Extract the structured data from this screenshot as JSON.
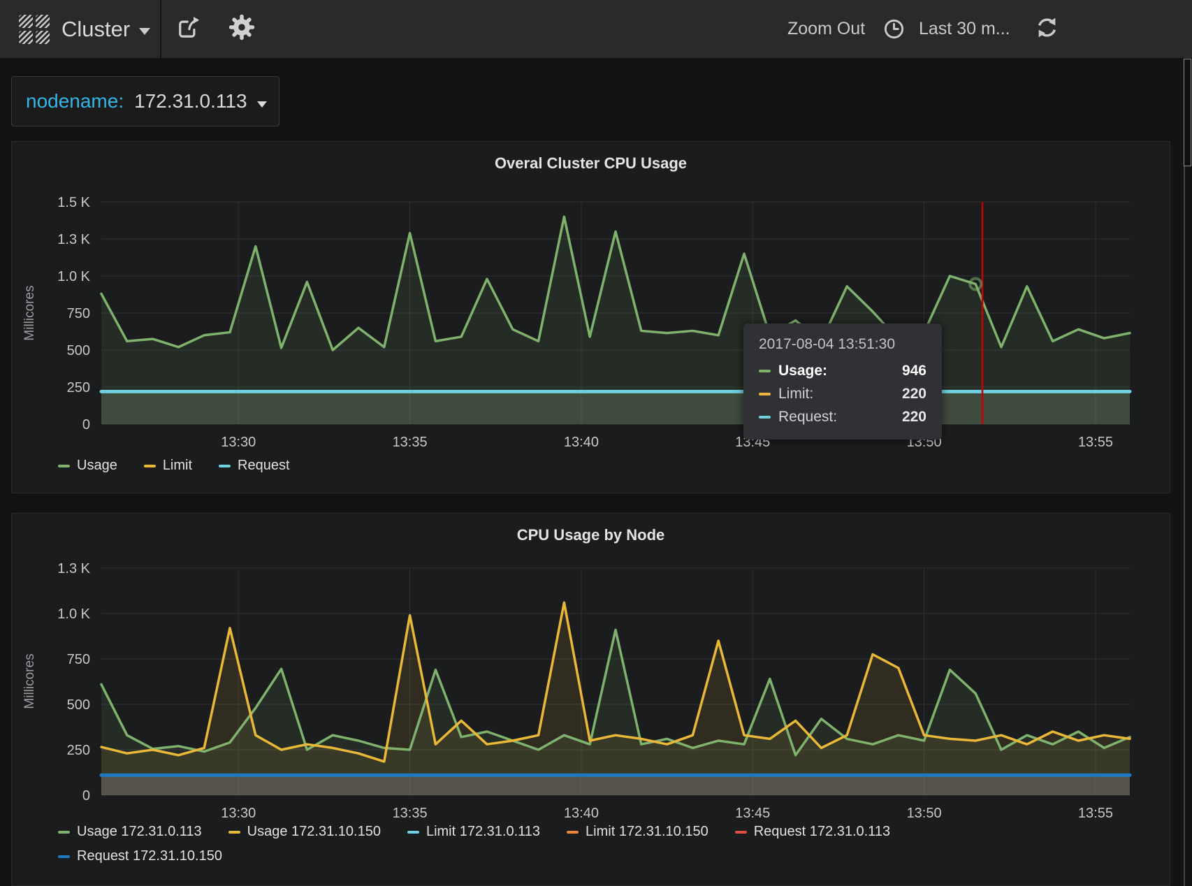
{
  "navbar": {
    "dashboard_title": "Cluster",
    "zoom_out_label": "Zoom Out",
    "time_range_label": "Last 30 m...",
    "icons": {
      "logo": "grafana-logo",
      "share": "share-icon",
      "settings": "gear-icon",
      "clock": "clock-icon",
      "refresh": "refresh-icon",
      "caret": "chevron-down-icon"
    }
  },
  "variable": {
    "label": "nodename:",
    "value": "172.31.0.113"
  },
  "tooltip": {
    "date": "2017-08-04 13:51:30",
    "rows": [
      {
        "label": "Usage:",
        "value": "946",
        "color": "#7eb26d",
        "bold": true
      },
      {
        "label": "Limit:",
        "value": "220",
        "color": "#eab839",
        "bold": false
      },
      {
        "label": "Request:",
        "value": "220",
        "color": "#6ed0e0",
        "bold": false
      }
    ]
  },
  "colors": {
    "accent_cyan": "#33b5e5",
    "green": "#7eb26d",
    "yellow": "#eab839",
    "cyan": "#6ed0e0",
    "orange": "#ef843c",
    "red": "#e24d42",
    "blue": "#1f78c1",
    "crosshair_red": "#cc0000"
  },
  "chart_data": [
    {
      "type": "line",
      "title": "Overal Cluster CPU Usage",
      "ylabel": "Millicores",
      "grid": true,
      "legend_position": "bottom-left",
      "time_start": "13:26",
      "time_end": "13:56",
      "xlim_minutes": [
        0,
        30
      ],
      "step_minutes": 0.75,
      "ylim": [
        0,
        1500
      ],
      "yticks": [
        {
          "v": 0,
          "label": "0"
        },
        {
          "v": 250,
          "label": "250"
        },
        {
          "v": 500,
          "label": "500"
        },
        {
          "v": 750,
          "label": "750"
        },
        {
          "v": 1000,
          "label": "1.0 K"
        },
        {
          "v": 1250,
          "label": "1.3 K"
        },
        {
          "v": 1500,
          "label": "1.5 K"
        }
      ],
      "xticks": [
        {
          "t": 4,
          "label": "13:30"
        },
        {
          "t": 9,
          "label": "13:35"
        },
        {
          "t": 14,
          "label": "13:40"
        },
        {
          "t": 19,
          "label": "13:45"
        },
        {
          "t": 24,
          "label": "13:50"
        },
        {
          "t": 29,
          "label": "13:55"
        }
      ],
      "series": [
        {
          "name": "Usage",
          "color": "#7eb26d",
          "width": 3.5,
          "fill": 0.1,
          "values": [
            880,
            560,
            575,
            520,
            600,
            620,
            1200,
            515,
            960,
            500,
            650,
            520,
            1290,
            560,
            590,
            980,
            640,
            560,
            1400,
            590,
            1300,
            630,
            615,
            630,
            600,
            1150,
            600,
            700,
            560,
            930,
            760,
            570,
            620,
            1000,
            946,
            520,
            930,
            560,
            640,
            580,
            615
          ]
        },
        {
          "name": "Limit",
          "color": "#eab839",
          "width": 4,
          "fill": 0.1,
          "flat": 220
        },
        {
          "name": "Request",
          "color": "#6ed0e0",
          "width": 5,
          "fill": 0.12,
          "flat": 220
        }
      ],
      "crosshair": {
        "t": 25.7,
        "color": "#cc0000"
      },
      "hover_point": {
        "series": "Usage",
        "t": 25.5,
        "value": 946
      },
      "legend_rows": [
        [
          {
            "label": "Usage",
            "color": "#7eb26d"
          },
          {
            "label": "Limit",
            "color": "#eab839"
          },
          {
            "label": "Request",
            "color": "#6ed0e0"
          }
        ]
      ]
    },
    {
      "type": "line",
      "title": "CPU Usage by Node",
      "ylabel": "Millicores",
      "grid": true,
      "legend_position": "bottom-left",
      "time_start": "13:26",
      "time_end": "13:56",
      "xlim_minutes": [
        0,
        30
      ],
      "step_minutes": 0.75,
      "ylim": [
        0,
        1250
      ],
      "yticks": [
        {
          "v": 0,
          "label": "0"
        },
        {
          "v": 250,
          "label": "250"
        },
        {
          "v": 500,
          "label": "500"
        },
        {
          "v": 750,
          "label": "750"
        },
        {
          "v": 1000,
          "label": "1.0 K"
        },
        {
          "v": 1250,
          "label": "1.3 K"
        }
      ],
      "xticks": [
        {
          "t": 4,
          "label": "13:30"
        },
        {
          "t": 9,
          "label": "13:35"
        },
        {
          "t": 14,
          "label": "13:40"
        },
        {
          "t": 19,
          "label": "13:45"
        },
        {
          "t": 24,
          "label": "13:50"
        },
        {
          "t": 29,
          "label": "13:55"
        }
      ],
      "series": [
        {
          "name": "Usage 172.31.0.113",
          "color": "#7eb26d",
          "width": 3.5,
          "fill": 0.1,
          "values": [
            610,
            330,
            255,
            270,
            240,
            290,
            480,
            695,
            250,
            330,
            300,
            260,
            250,
            690,
            320,
            350,
            300,
            250,
            330,
            280,
            910,
            280,
            310,
            260,
            300,
            280,
            640,
            220,
            420,
            310,
            280,
            330,
            300,
            690,
            560,
            250,
            330,
            280,
            350,
            260,
            320
          ]
        },
        {
          "name": "Usage 172.31.10.150",
          "color": "#eab839",
          "width": 3.5,
          "fill": 0.1,
          "values": [
            265,
            230,
            250,
            220,
            260,
            920,
            330,
            250,
            280,
            260,
            230,
            185,
            990,
            280,
            410,
            280,
            300,
            330,
            1060,
            300,
            330,
            310,
            280,
            330,
            850,
            330,
            310,
            410,
            260,
            330,
            775,
            700,
            330,
            310,
            300,
            330,
            280,
            350,
            300,
            330,
            310
          ]
        },
        {
          "name": "Limit 172.31.0.113",
          "color": "#6ed0e0",
          "width": 4,
          "fill": 0.1,
          "flat": 110
        },
        {
          "name": "Limit 172.31.10.150",
          "color": "#ef843c",
          "width": 4,
          "fill": 0.1,
          "flat": 110
        },
        {
          "name": "Request 172.31.0.113",
          "color": "#e24d42",
          "width": 4,
          "fill": 0.1,
          "flat": 110
        },
        {
          "name": "Request 172.31.10.150",
          "color": "#1f78c1",
          "width": 5,
          "fill": 0.12,
          "flat": 110
        }
      ],
      "legend_rows": [
        [
          {
            "label": "Usage 172.31.0.113",
            "color": "#7eb26d"
          },
          {
            "label": "Usage 172.31.10.150",
            "color": "#eab839"
          },
          {
            "label": "Limit 172.31.0.113",
            "color": "#6ed0e0"
          },
          {
            "label": "Limit 172.31.10.150",
            "color": "#ef843c"
          },
          {
            "label": "Request 172.31.0.113",
            "color": "#e24d42"
          }
        ],
        [
          {
            "label": "Request 172.31.10.150",
            "color": "#1f78c1"
          }
        ]
      ]
    }
  ]
}
